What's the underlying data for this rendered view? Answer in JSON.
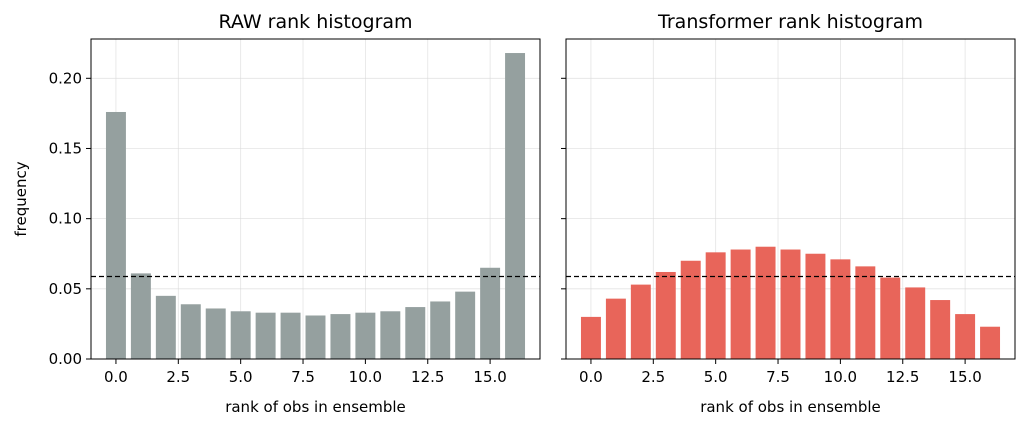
{
  "chart_data": [
    {
      "type": "bar",
      "title": "RAW rank histogram",
      "xlabel": "rank of obs in ensemble",
      "ylabel": "frequency",
      "x": [
        0,
        1,
        2,
        3,
        4,
        5,
        6,
        7,
        8,
        9,
        10,
        11,
        12,
        13,
        14,
        15,
        16
      ],
      "values": [
        0.176,
        0.061,
        0.045,
        0.039,
        0.036,
        0.034,
        0.033,
        0.033,
        0.031,
        0.032,
        0.033,
        0.034,
        0.037,
        0.041,
        0.048,
        0.065,
        0.218
      ],
      "color": "#95a09f",
      "reference_line": 0.0588,
      "reference_line_style": "dashed",
      "xlim": [
        -1,
        17
      ],
      "ylim": [
        0,
        0.228
      ],
      "xticks": [
        "0.0",
        "2.5",
        "5.0",
        "7.5",
        "10.0",
        "12.5",
        "15.0"
      ],
      "yticks": [
        "0.00",
        "0.05",
        "0.10",
        "0.15",
        "0.20"
      ],
      "grid": true
    },
    {
      "type": "bar",
      "title": "Transformer rank histogram",
      "xlabel": "rank of obs in ensemble",
      "ylabel": "",
      "x": [
        0,
        1,
        2,
        3,
        4,
        5,
        6,
        7,
        8,
        9,
        10,
        11,
        12,
        13,
        14,
        15,
        16
      ],
      "values": [
        0.03,
        0.043,
        0.053,
        0.062,
        0.07,
        0.076,
        0.078,
        0.08,
        0.078,
        0.075,
        0.071,
        0.066,
        0.058,
        0.051,
        0.042,
        0.032,
        0.023
      ],
      "color": "#e8655a",
      "reference_line": 0.0588,
      "reference_line_style": "dashed",
      "xlim": [
        -1,
        17
      ],
      "ylim": [
        0,
        0.228
      ],
      "xticks": [
        "0.0",
        "2.5",
        "5.0",
        "7.5",
        "10.0",
        "12.5",
        "15.0"
      ],
      "yticks": [],
      "grid": true
    }
  ]
}
